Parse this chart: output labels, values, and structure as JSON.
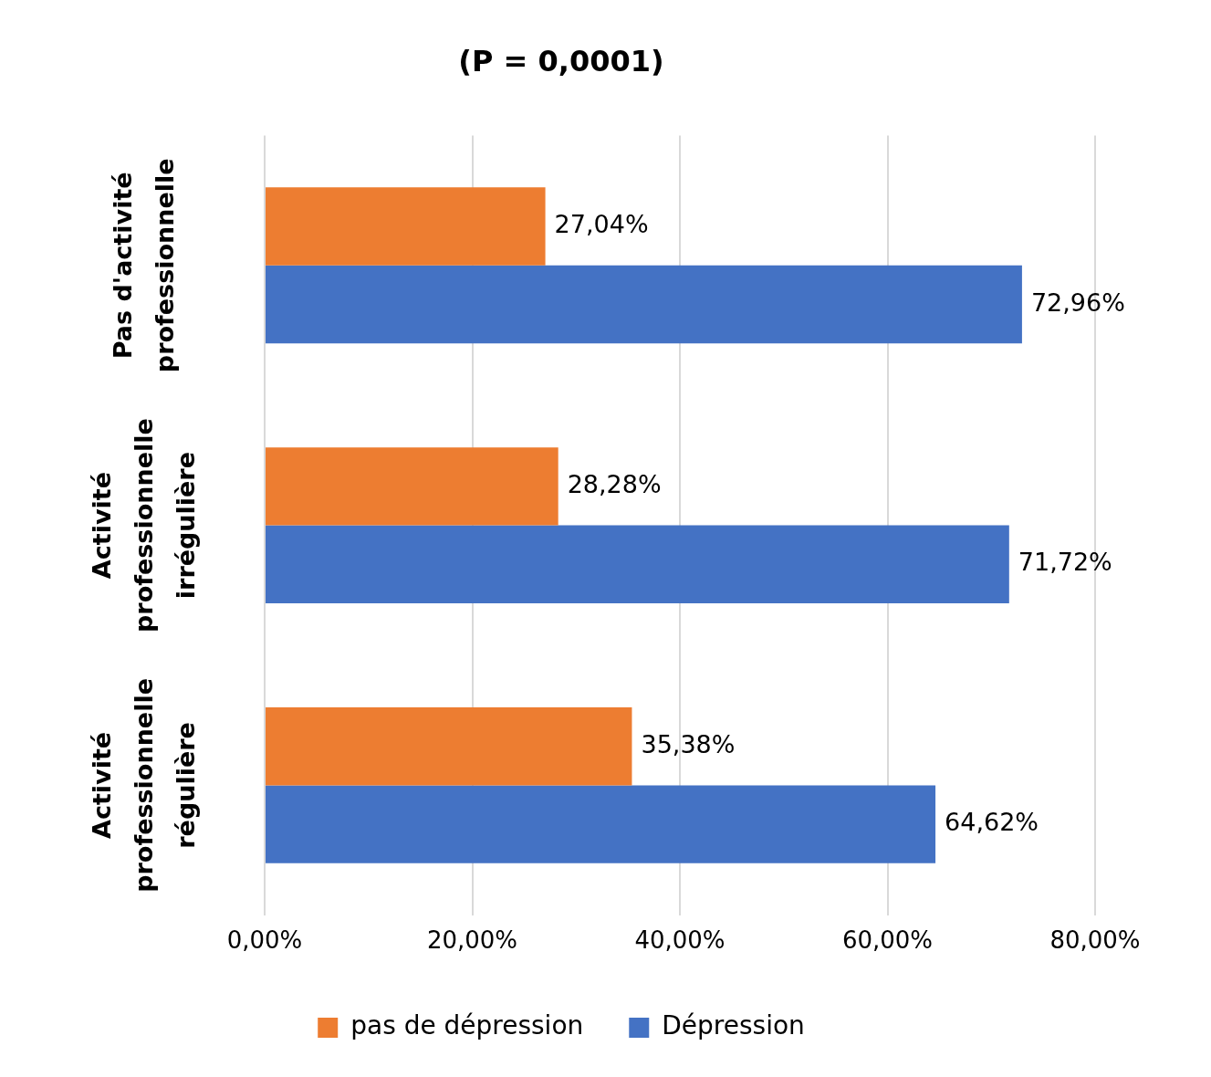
{
  "chart_data": {
    "type": "bar",
    "orientation": "horizontal",
    "title": "(P = 0,0001)",
    "categories": [
      "Pas d'activité professionnelle",
      "Activité professionnelle irrégulière",
      "Activité professionnelle régulière"
    ],
    "series": [
      {
        "name": "pas de dépression",
        "color": "#ed7d31",
        "values": [
          27.04,
          28.28,
          35.38
        ],
        "value_labels": [
          "27,04%",
          "28,28%",
          "35,38%"
        ]
      },
      {
        "name": "Dépression",
        "color": "#4472c4",
        "values": [
          72.96,
          71.72,
          64.62
        ],
        "value_labels": [
          "72,96%",
          "71,72%",
          "64,62%"
        ]
      }
    ],
    "xlim": [
      0,
      80
    ],
    "xticks": [
      {
        "value": 0,
        "label": "0,00%"
      },
      {
        "value": 20,
        "label": "20,00%"
      },
      {
        "value": 40,
        "label": "40,00%"
      },
      {
        "value": 60,
        "label": "60,00%"
      },
      {
        "value": 80,
        "label": "80,00%"
      }
    ],
    "grid": "x",
    "legend": "bottom"
  }
}
